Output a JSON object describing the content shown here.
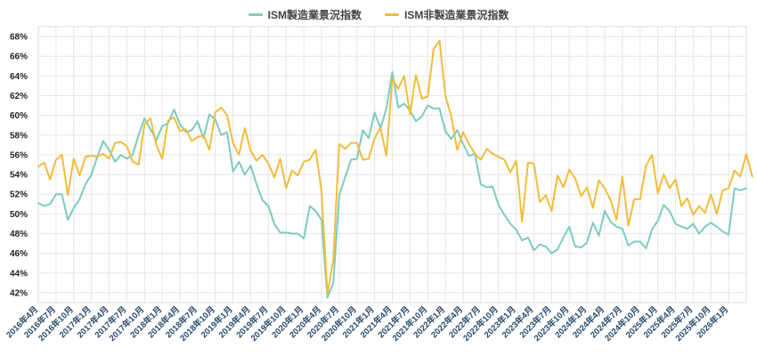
{
  "chart_data": {
    "type": "line",
    "title": "",
    "xlabel": "",
    "ylabel": "",
    "ylim": [
      41,
      69
    ],
    "y_ticks": [
      42,
      44,
      46,
      48,
      50,
      52,
      54,
      56,
      58,
      60,
      62,
      64,
      66,
      68
    ],
    "y_suffix": "%",
    "grid": true,
    "legend_position": "top-center",
    "x_labels": [
      "2016年4月",
      "2016年7月",
      "2016年10月",
      "2017年1月",
      "2017年4月",
      "2017年7月",
      "2017年10月",
      "2018年1月",
      "2018年4月",
      "2018年7月",
      "2018年10月",
      "2019年1月",
      "2019年4月",
      "2019年7月",
      "2019年10月",
      "2020年1月",
      "2020年4月",
      "2020年7月",
      "2020年10月",
      "2021年1月",
      "2021年4月",
      "2021年7月",
      "2021年10月",
      "2022年1月",
      "2022年4月",
      "2022年7月",
      "2022年10月",
      "2023年1月",
      "2023年4月",
      "2023年7月",
      "2023年10月",
      "2024年1月",
      "2024年4月",
      "2024年7月",
      "2024年10月",
      "2025年1月",
      "2025年4月",
      "2025年7月",
      "2025年10月",
      "2026年1月"
    ],
    "series": [
      {
        "name": "ISM製造業景況指数",
        "color": "#7ecbc0",
        "values": [
          51.1,
          50.8,
          51.0,
          52.0,
          52.0,
          49.4,
          50.6,
          51.5,
          53.0,
          54.0,
          55.8,
          57.4,
          56.5,
          55.3,
          56.0,
          55.6,
          56.0,
          58.0,
          59.7,
          58.6,
          57.5,
          58.9,
          59.2,
          60.6,
          59.1,
          58.3,
          58.5,
          59.4,
          57.7,
          60.1,
          59.6,
          58.0,
          58.3,
          54.3,
          55.3,
          54.0,
          54.9,
          53.0,
          51.4,
          50.8,
          49.0,
          48.1,
          48.1,
          48.0,
          48.0,
          47.5,
          50.8,
          50.3,
          49.4,
          41.5,
          43.0,
          51.9,
          53.7,
          55.5,
          55.6,
          58.5,
          57.7,
          60.3,
          58.7,
          60.7,
          64.4,
          60.8,
          61.2,
          60.5,
          59.4,
          59.9,
          61.0,
          60.7,
          60.7,
          58.4,
          57.6,
          58.5,
          57.1,
          55.9,
          56.1,
          53.0,
          52.7,
          52.8,
          50.9,
          49.9,
          49.0,
          48.4,
          47.3,
          47.6,
          46.3,
          46.9,
          46.7,
          46.0,
          46.4,
          47.6,
          48.7,
          46.7,
          46.6,
          47.1,
          49.1,
          47.8,
          50.3,
          49.2,
          48.7,
          48.5,
          46.8,
          47.2,
          47.2,
          46.5,
          48.4,
          49.3,
          50.9,
          50.3,
          49.0,
          48.7,
          48.5,
          49.0,
          48.0,
          48.7,
          49.1,
          48.7,
          48.2,
          47.9,
          52.6,
          52.4,
          52.6
        ]
      },
      {
        "name": "ISM非製造業景況指数",
        "color": "#f0bd3c",
        "values": [
          54.8,
          55.2,
          53.5,
          55.5,
          56.0,
          51.9,
          55.6,
          53.9,
          55.8,
          55.9,
          55.8,
          56.1,
          55.6,
          57.2,
          57.3,
          56.9,
          55.3,
          55.0,
          59.1,
          59.7,
          57.0,
          55.6,
          59.5,
          59.8,
          58.4,
          58.6,
          57.4,
          57.8,
          58.0,
          56.5,
          60.3,
          60.8,
          60.0,
          57.2,
          56.0,
          58.7,
          56.4,
          55.4,
          56.0,
          55.1,
          53.7,
          55.6,
          52.6,
          54.4,
          53.9,
          55.3,
          55.5,
          56.5,
          52.3,
          41.8,
          45.4,
          57.1,
          56.6,
          57.2,
          57.2,
          55.5,
          55.6,
          57.7,
          58.7,
          55.9,
          63.7,
          62.7,
          64.0,
          60.1,
          64.1,
          61.7,
          61.9,
          66.7,
          67.6,
          62.0,
          59.9,
          56.5,
          58.3,
          57.1,
          56.1,
          55.5,
          56.6,
          56.1,
          55.8,
          55.5,
          54.2,
          55.4,
          49.2,
          55.2,
          55.1,
          51.2,
          51.9,
          50.3,
          53.9,
          52.7,
          54.5,
          53.6,
          51.8,
          52.7,
          50.6,
          53.4,
          52.6,
          51.4,
          49.4,
          53.8,
          48.8,
          51.5,
          51.5,
          54.9,
          56.0,
          52.1,
          54.0,
          52.6,
          53.5,
          50.8,
          51.6,
          49.9,
          50.8,
          50.1,
          52.0,
          50.0,
          52.4,
          52.6,
          54.4,
          53.8,
          56.1,
          53.8
        ]
      }
    ]
  }
}
